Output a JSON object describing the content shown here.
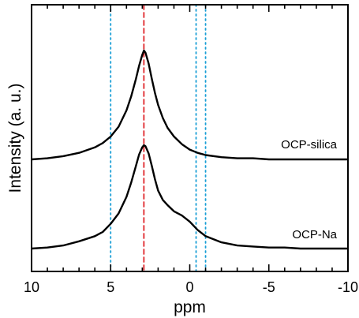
{
  "chart_data": {
    "type": "line",
    "title": "",
    "xlabel": "ppm",
    "ylabel": "Intensity (a. u.)",
    "xlim": [
      10,
      -10
    ],
    "x_reversed": true,
    "x_ticks": [
      10,
      5,
      0,
      -5,
      -10
    ],
    "y_ticks_shown": false,
    "grid": false,
    "reference_lines": [
      {
        "x": 5.0,
        "color": "#1a9fd6",
        "style": "dotted"
      },
      {
        "x": 2.9,
        "color": "#e0262b",
        "style": "dashed"
      },
      {
        "x": -1.0,
        "color": "#1a9fd6",
        "style": "dotted"
      },
      {
        "x": -0.4,
        "color": "#1a9fd6",
        "style": "dotted"
      }
    ],
    "series": [
      {
        "name": "OCP-silica",
        "color": "#000000",
        "x": [
          10,
          9,
          8,
          7,
          6,
          5.5,
          5,
          4.5,
          4,
          3.7,
          3.4,
          3.2,
          3.0,
          2.9,
          2.8,
          2.6,
          2.4,
          2.2,
          2.0,
          1.7,
          1.4,
          1.0,
          0.5,
          0,
          -0.5,
          -1,
          -2,
          -3,
          -4,
          -5,
          -6,
          -7,
          -8,
          -9,
          -10
        ],
        "values": [
          0.0,
          0.01,
          0.03,
          0.06,
          0.11,
          0.15,
          0.21,
          0.3,
          0.45,
          0.58,
          0.74,
          0.86,
          0.96,
          1.0,
          0.98,
          0.88,
          0.74,
          0.61,
          0.5,
          0.38,
          0.29,
          0.21,
          0.14,
          0.09,
          0.06,
          0.04,
          0.02,
          0.01,
          0.01,
          0.0,
          0.0,
          0.0,
          0.0,
          0.0,
          0.0
        ]
      },
      {
        "name": "OCP-Na",
        "color": "#000000",
        "x": [
          10,
          9,
          8,
          7,
          6,
          5.5,
          5,
          4.5,
          4,
          3.7,
          3.4,
          3.2,
          3.0,
          2.9,
          2.8,
          2.6,
          2.4,
          2.2,
          2.0,
          1.7,
          1.4,
          1.0,
          0.5,
          0,
          -0.5,
          -1,
          -2,
          -3,
          -4,
          -5,
          -6,
          -7,
          -8,
          -9,
          -10
        ],
        "values": [
          0.0,
          0.01,
          0.03,
          0.07,
          0.12,
          0.16,
          0.24,
          0.34,
          0.5,
          0.64,
          0.8,
          0.91,
          0.98,
          1.0,
          0.99,
          0.92,
          0.8,
          0.67,
          0.56,
          0.47,
          0.42,
          0.36,
          0.32,
          0.26,
          0.18,
          0.12,
          0.06,
          0.03,
          0.02,
          0.01,
          0.01,
          0.0,
          0.0,
          0.0,
          0.0
        ]
      }
    ]
  }
}
